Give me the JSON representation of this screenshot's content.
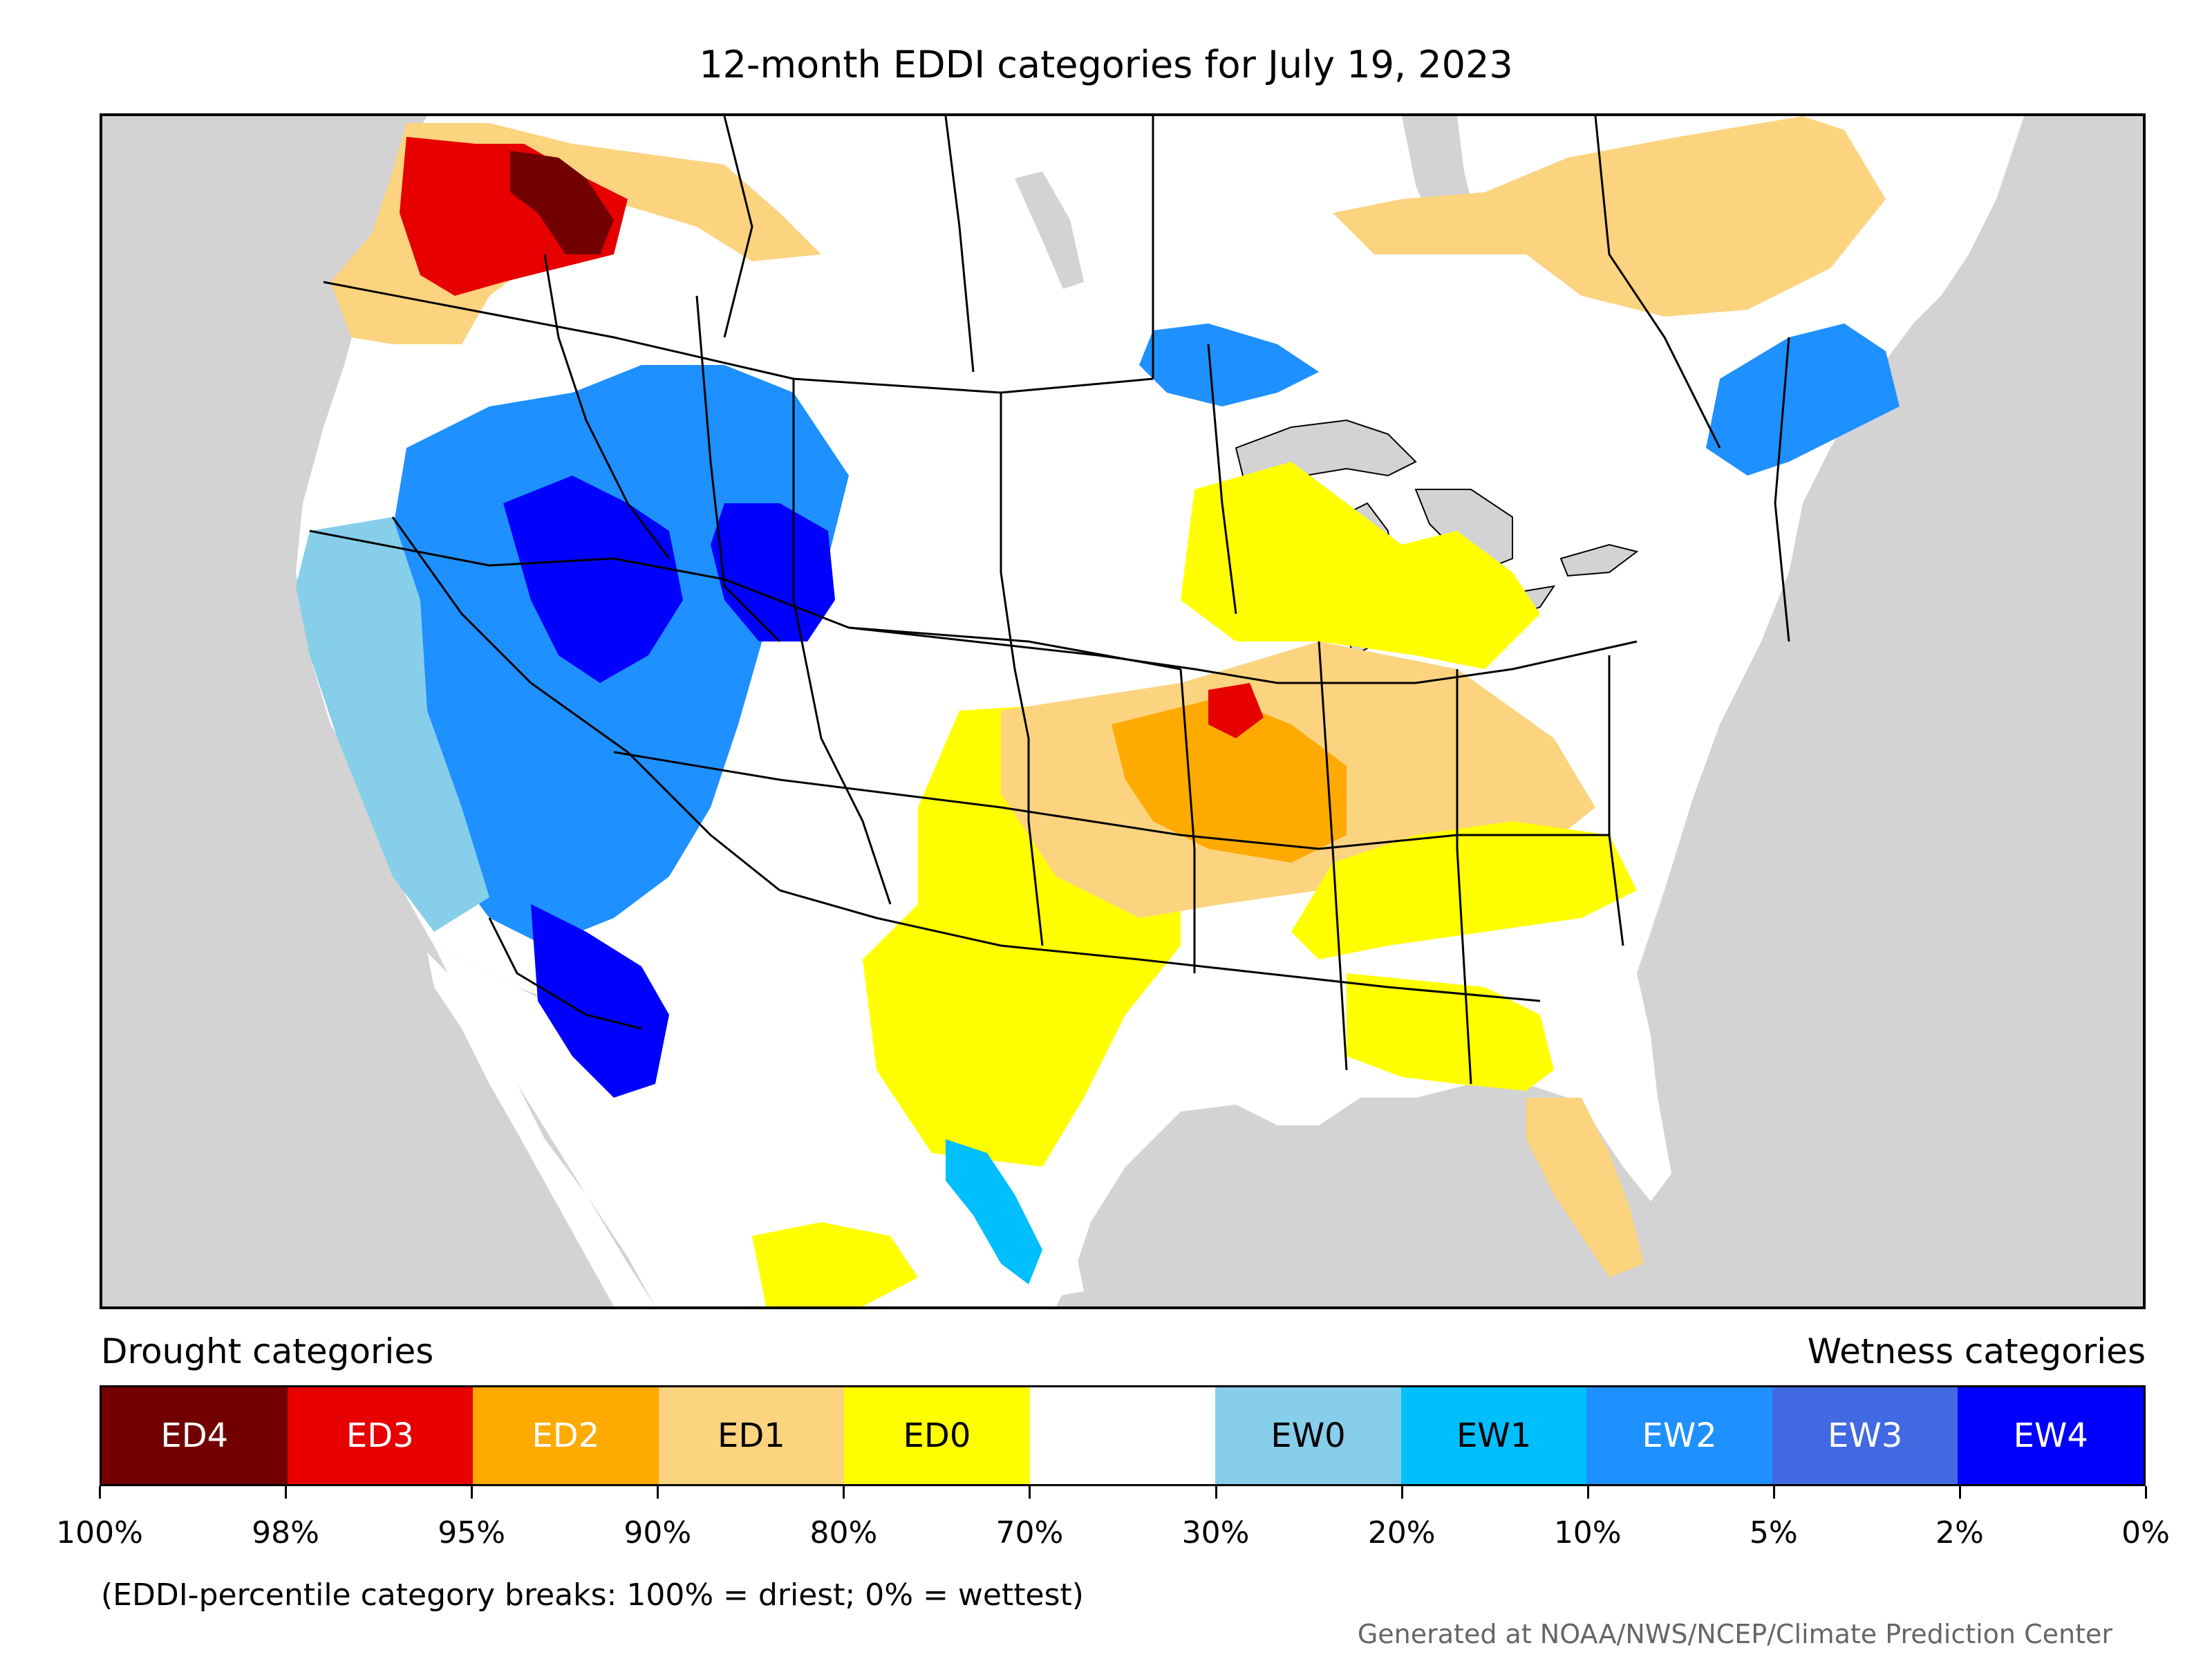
{
  "title": "12-month EDDI categories for July 19, 2023",
  "map": {
    "ocean_color": "#d3d3d3",
    "land_color": "#ffffff",
    "border_color": "#000000",
    "regions": [
      {
        "name": "pacific-northwest",
        "category": "ED1"
      },
      {
        "name": "northern-rockies",
        "category": "ED3"
      },
      {
        "name": "northern-rockies-core",
        "category": "ED4"
      },
      {
        "name": "great-basin",
        "category": "EW2"
      },
      {
        "name": "utah-core",
        "category": "EW4"
      },
      {
        "name": "wyoming",
        "category": "EW4"
      },
      {
        "name": "california",
        "category": "EW0"
      },
      {
        "name": "arizona",
        "category": "EW4"
      },
      {
        "name": "corn-belt",
        "category": "ED1"
      },
      {
        "name": "missouri",
        "category": "ED2"
      },
      {
        "name": "iowa-illinois-hotspot",
        "category": "ED3"
      },
      {
        "name": "southern-plains",
        "category": "ED0"
      },
      {
        "name": "ohio-valley",
        "category": "ED0"
      },
      {
        "name": "upper-midwest",
        "category": "ED0"
      },
      {
        "name": "new-england",
        "category": "EW2"
      },
      {
        "name": "quebec",
        "category": "ED1"
      },
      {
        "name": "florida",
        "category": "ED1"
      },
      {
        "name": "gulf-coast",
        "category": "ED0"
      },
      {
        "name": "texas-coast",
        "category": "EW1"
      },
      {
        "name": "lake-superior-shore",
        "category": "EW2"
      },
      {
        "name": "mexico-north",
        "category": "ED0"
      }
    ]
  },
  "legend": {
    "drought_label": "Drought categories",
    "wetness_label": "Wetness categories",
    "categories": [
      {
        "label": "ED4",
        "color": "#730000",
        "text_color": "#ffffff"
      },
      {
        "label": "ED3",
        "color": "#e60000",
        "text_color": "#ffffff"
      },
      {
        "label": "ED2",
        "color": "#ffaa00",
        "text_color": "#ffffff"
      },
      {
        "label": "ED1",
        "color": "#fcd37f",
        "text_color": "#000000"
      },
      {
        "label": "ED0",
        "color": "#ffff00",
        "text_color": "#000000"
      },
      {
        "label": "",
        "color": "#ffffff",
        "text_color": "#000000"
      },
      {
        "label": "EW0",
        "color": "#87ceeb",
        "text_color": "#000000"
      },
      {
        "label": "EW1",
        "color": "#00bfff",
        "text_color": "#000000"
      },
      {
        "label": "EW2",
        "color": "#1e90ff",
        "text_color": "#ffffff"
      },
      {
        "label": "EW3",
        "color": "#4169e1",
        "text_color": "#ffffff"
      },
      {
        "label": "EW4",
        "color": "#0000ff",
        "text_color": "#ffffff"
      }
    ],
    "ticks": [
      "100%",
      "98%",
      "95%",
      "90%",
      "80%",
      "70%",
      "30%",
      "20%",
      "10%",
      "5%",
      "2%",
      "0%"
    ]
  },
  "note": "(EDDI-percentile category breaks: 100% = driest; 0% = wettest)",
  "credit": "Generated at NOAA/NWS/NCEP/Climate Prediction Center"
}
